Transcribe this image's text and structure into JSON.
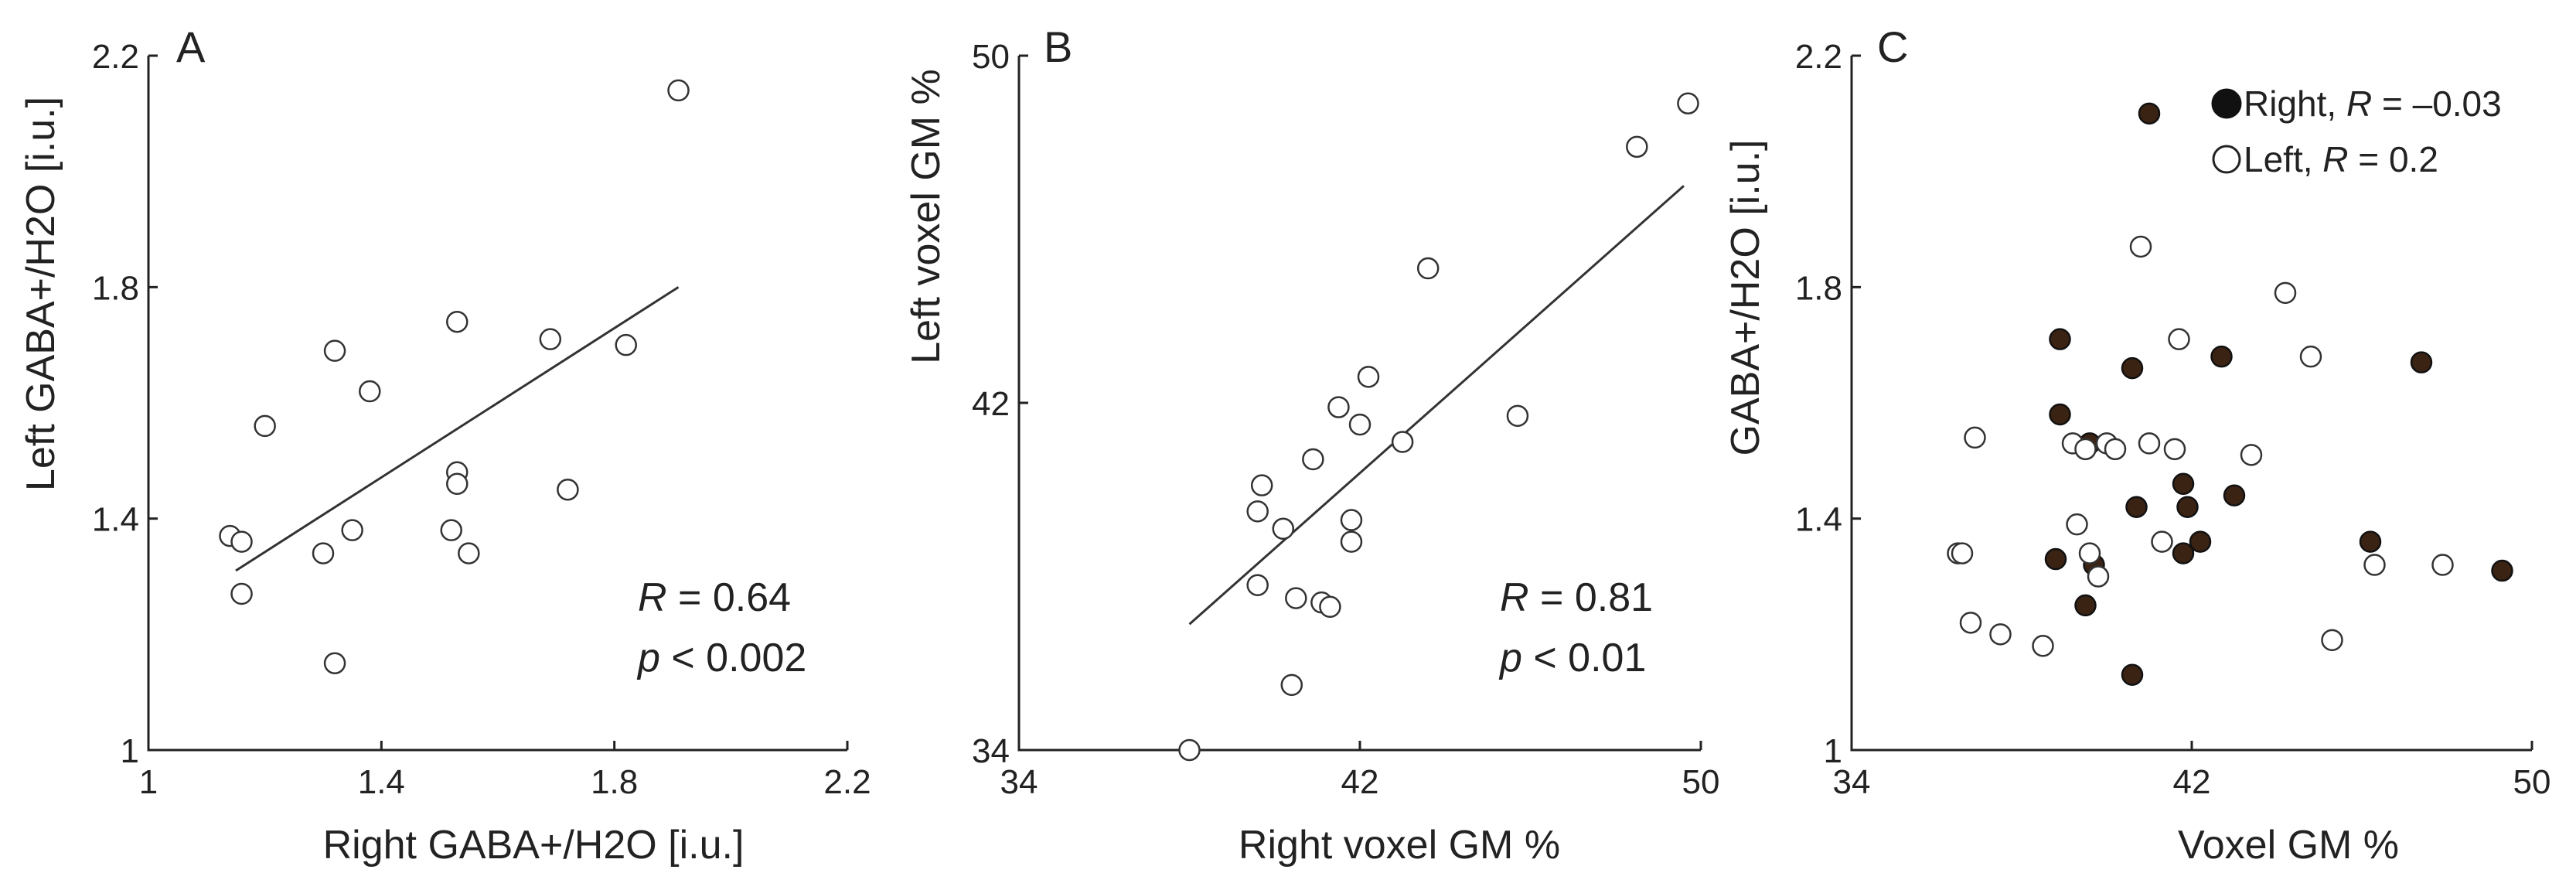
{
  "chart_data": [
    {
      "type": "scatter",
      "panel": "A",
      "xlabel": "Right GABA+/H2O [i.u.]",
      "ylabel": "Left GABA+/H2O [i.u.]",
      "xlim": [
        1,
        2.2
      ],
      "ylim": [
        1,
        2.2
      ],
      "xticks": [
        1,
        1.4,
        1.8,
        2.2
      ],
      "yticks": [
        1,
        1.4,
        1.8,
        2.2
      ],
      "xtick_labels": [
        "1",
        "1.4",
        "1.8",
        "2.2"
      ],
      "ytick_labels": [
        "1",
        "1.4",
        "1.8",
        "2.2"
      ],
      "stats": {
        "r_prefix": "R",
        "r_rest": " = 0.64",
        "p_prefix": "p",
        "p_rest": " < 0.002"
      },
      "fit": {
        "x": [
          1.15,
          1.91
        ],
        "y": [
          1.31,
          1.8
        ]
      },
      "series": [
        {
          "marker": "open",
          "x": [
            1.14,
            1.16,
            1.16,
            1.2,
            1.3,
            1.32,
            1.32,
            1.35,
            1.38,
            1.52,
            1.53,
            1.53,
            1.53,
            1.55,
            1.69,
            1.72,
            1.82,
            1.91
          ],
          "y": [
            1.37,
            1.36,
            1.27,
            1.56,
            1.34,
            1.15,
            1.69,
            1.38,
            1.62,
            1.38,
            1.48,
            1.46,
            1.74,
            1.34,
            1.71,
            1.45,
            1.7,
            2.14
          ]
        }
      ]
    },
    {
      "type": "scatter",
      "panel": "B",
      "xlabel": "Right voxel GM %",
      "ylabel": "Left voxel GM %",
      "xlim": [
        34,
        50
      ],
      "ylim": [
        34,
        50
      ],
      "xticks": [
        34,
        42,
        50
      ],
      "yticks": [
        34,
        42,
        50
      ],
      "xtick_labels": [
        "34",
        "42",
        "50"
      ],
      "ytick_labels": [
        "34",
        "42",
        "50"
      ],
      "stats": {
        "r_prefix": "R",
        "r_rest": " = 0.81",
        "p_prefix": "p",
        "p_rest": " < 0.01"
      },
      "fit": {
        "x": [
          38.0,
          49.6
        ],
        "y": [
          36.9,
          47.0
        ]
      },
      "series": [
        {
          "marker": "open",
          "x": [
            38.0,
            39.6,
            39.6,
            39.7,
            40.2,
            40.4,
            40.5,
            40.9,
            41.1,
            41.3,
            41.5,
            41.8,
            41.8,
            42.0,
            42.2,
            43.0,
            43.6,
            45.7,
            48.5,
            49.7
          ],
          "y": [
            34.0,
            37.8,
            39.5,
            40.1,
            39.1,
            35.5,
            37.5,
            40.7,
            37.4,
            37.3,
            41.9,
            38.8,
            39.3,
            41.5,
            42.6,
            41.1,
            45.1,
            41.7,
            47.9,
            48.9
          ]
        }
      ]
    },
    {
      "type": "scatter",
      "panel": "C",
      "xlabel": "Voxel GM %",
      "ylabel": "GABA+/H2O [i.u.]",
      "xlim": [
        34,
        50
      ],
      "ylim": [
        1,
        2.2
      ],
      "xticks": [
        34,
        42,
        50
      ],
      "yticks": [
        1,
        1.4,
        1.8,
        2.2
      ],
      "xtick_labels": [
        "34",
        "42",
        "50"
      ],
      "ytick_labels": [
        "1",
        "1.4",
        "1.8",
        "2.2"
      ],
      "legend": [
        {
          "marker": "filled",
          "name_prefix": "Right, ",
          "name_italic": "R",
          "name_rest": " = –0.03"
        },
        {
          "marker": "open",
          "name_prefix": "Left, ",
          "name_italic": "R",
          "name_rest": " = 0.2"
        }
      ],
      "series": [
        {
          "marker": "filled",
          "color": "#3b2314",
          "x": [
            38.8,
            38.9,
            38.9,
            39.5,
            39.6,
            39.7,
            40.6,
            40.6,
            40.7,
            41.0,
            41.8,
            41.8,
            41.9,
            42.2,
            42.7,
            43.0,
            46.2,
            47.4,
            49.3
          ],
          "y": [
            1.33,
            1.71,
            1.58,
            1.25,
            1.53,
            1.32,
            1.13,
            1.66,
            1.42,
            2.1,
            1.34,
            1.46,
            1.42,
            1.36,
            1.68,
            1.44,
            1.36,
            1.67,
            1.31
          ]
        },
        {
          "marker": "open",
          "x": [
            36.5,
            36.6,
            36.8,
            36.9,
            37.5,
            38.5,
            39.2,
            39.3,
            39.5,
            39.6,
            39.8,
            40.0,
            40.2,
            40.8,
            41.0,
            41.3,
            41.6,
            41.7,
            43.4,
            44.2,
            44.8,
            45.3,
            46.3,
            47.9
          ],
          "y": [
            1.34,
            1.34,
            1.22,
            1.54,
            1.2,
            1.18,
            1.53,
            1.39,
            1.52,
            1.34,
            1.3,
            1.53,
            1.52,
            1.87,
            1.53,
            1.36,
            1.52,
            1.71,
            1.51,
            1.79,
            1.68,
            1.19,
            1.32,
            1.32
          ]
        }
      ]
    }
  ]
}
